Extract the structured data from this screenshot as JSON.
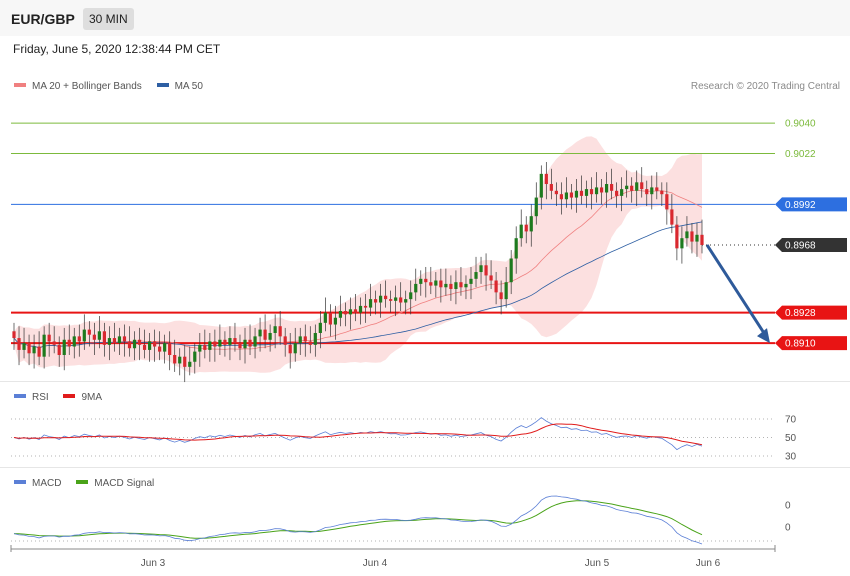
{
  "header": {
    "pair": "EUR/GBP",
    "timeframe": "30 MIN"
  },
  "date_line": "Friday, June 5, 2020 12:38:44 PM CET",
  "credit": "Research © 2020 Trading Central",
  "legends": {
    "main": [
      {
        "label": "MA 20 + Bollinger Bands",
        "color": "#f08080"
      },
      {
        "label": "MA 50",
        "color": "#2e5fa3"
      }
    ],
    "rsi": [
      {
        "label": "RSI",
        "color": "#5b7fd6"
      },
      {
        "label": "9MA",
        "color": "#e01b1b"
      }
    ],
    "macd": [
      {
        "label": "MACD",
        "color": "#5b7fd6"
      },
      {
        "label": "MACD Signal",
        "color": "#4aa319"
      }
    ]
  },
  "chart_data": {
    "type": "candlestick",
    "instrument": "EUR/GBP",
    "timeframe": "30 MIN",
    "x_ticks": [
      "Jun 3",
      "Jun 4",
      "Jun 5",
      "Jun 6"
    ],
    "price_range": [
      0.889,
      0.9056
    ],
    "levels": [
      {
        "label": "0.9040",
        "value": 0.904,
        "kind": "resistance",
        "color": "#7cba3c",
        "badge": false
      },
      {
        "label": "0.9022",
        "value": 0.9022,
        "kind": "resistance",
        "color": "#7cba3c",
        "badge": false
      },
      {
        "label": "0.8992",
        "value": 0.8992,
        "kind": "pivot",
        "color": "#2d6fe0",
        "badge": true
      },
      {
        "label": "0.8968",
        "value": 0.8968,
        "kind": "last",
        "color": "#333333",
        "badge": true
      },
      {
        "label": "0.8928",
        "value": 0.8928,
        "kind": "support",
        "color": "#e81414",
        "badge": true
      },
      {
        "label": "0.8910",
        "value": 0.891,
        "kind": "support",
        "color": "#e81414",
        "badge": true
      }
    ],
    "forecast_arrow": {
      "from": 0.8968,
      "to": 0.891
    },
    "closes": [
      0.8913,
      0.8906,
      0.891,
      0.8904,
      0.8908,
      0.8902,
      0.8915,
      0.8911,
      0.8909,
      0.8903,
      0.8912,
      0.8908,
      0.8914,
      0.8911,
      0.8918,
      0.8915,
      0.8912,
      0.8917,
      0.8909,
      0.8913,
      0.891,
      0.8914,
      0.8911,
      0.8907,
      0.8912,
      0.8909,
      0.8906,
      0.8911,
      0.8908,
      0.8905,
      0.891,
      0.8903,
      0.8898,
      0.8902,
      0.8896,
      0.8899,
      0.8905,
      0.8909,
      0.8906,
      0.8911,
      0.8908,
      0.8912,
      0.8909,
      0.8913,
      0.891,
      0.8907,
      0.8912,
      0.8908,
      0.8914,
      0.8918,
      0.8912,
      0.8916,
      0.892,
      0.8914,
      0.8909,
      0.8904,
      0.891,
      0.8914,
      0.8911,
      0.8909,
      0.8916,
      0.8922,
      0.8928,
      0.8921,
      0.8925,
      0.8929,
      0.8927,
      0.893,
      0.8928,
      0.8932,
      0.8931,
      0.8936,
      0.8934,
      0.8938,
      0.8936,
      0.8935,
      0.8937,
      0.8934,
      0.8936,
      0.894,
      0.8945,
      0.8948,
      0.8946,
      0.8944,
      0.8947,
      0.8943,
      0.8945,
      0.8942,
      0.8946,
      0.8943,
      0.8945,
      0.8948,
      0.8952,
      0.8956,
      0.895,
      0.8947,
      0.894,
      0.8936,
      0.8946,
      0.896,
      0.8972,
      0.898,
      0.8976,
      0.8985,
      0.8996,
      0.901,
      0.9004,
      0.9,
      0.8998,
      0.8995,
      0.8999,
      0.8996,
      0.9,
      0.8997,
      0.9001,
      0.8998,
      0.9002,
      0.8999,
      0.9004,
      0.9,
      0.8997,
      0.9001,
      0.9003,
      0.9,
      0.9005,
      0.9001,
      0.8998,
      0.9002,
      0.9,
      0.8998,
      0.8989,
      0.898,
      0.8966,
      0.8972,
      0.8976,
      0.897,
      0.8974,
      0.8968
    ],
    "rsi_axis": [
      70,
      50,
      30
    ],
    "macd_axis": [
      "0",
      "0"
    ]
  }
}
